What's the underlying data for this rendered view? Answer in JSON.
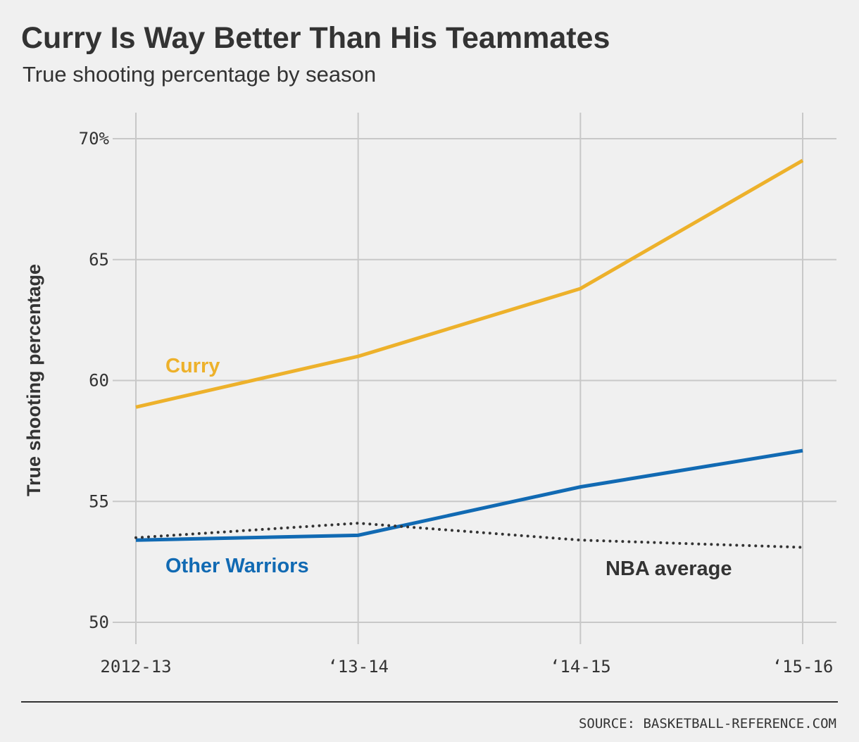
{
  "chart_data": {
    "type": "line",
    "title": "Curry Is Way Better Than His Teammates",
    "subtitle": "True shooting percentage by season",
    "y_label": "True shooting percentage",
    "source": "SOURCE: BASKETBALL-REFERENCE.COM",
    "categories": [
      "2012-13",
      "‘13-14",
      "‘14-15",
      "‘15-16"
    ],
    "series": [
      {
        "name": "Curry",
        "color": "#edb12b",
        "style": "solid",
        "values": [
          58.9,
          61.0,
          63.8,
          69.1
        ]
      },
      {
        "name": "Other Warriors",
        "color": "#116ab3",
        "style": "solid",
        "values": [
          53.4,
          53.6,
          55.6,
          57.1
        ]
      },
      {
        "name": "NBA average",
        "color": "#333333",
        "style": "dotted",
        "values": [
          53.5,
          54.1,
          53.4,
          53.1
        ]
      }
    ],
    "ylim": [
      50,
      70
    ],
    "yticks": [
      50,
      55,
      60,
      65,
      {
        "value": 70,
        "label": "70%"
      }
    ],
    "grid": true
  }
}
